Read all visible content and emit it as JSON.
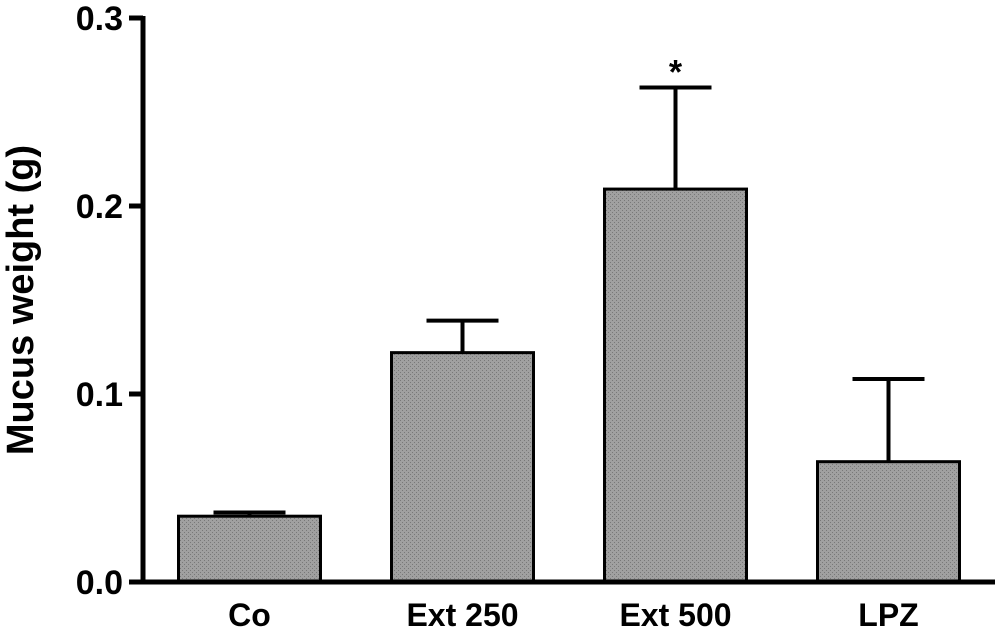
{
  "chart_data": {
    "type": "bar",
    "title": "",
    "xlabel": "",
    "ylabel": "Mucus weight (g)",
    "ylim": [
      0,
      0.3
    ],
    "yticks": [
      0.0,
      0.1,
      0.2,
      0.3
    ],
    "ytick_labels": [
      "0.0",
      "0.1",
      "0.2",
      "0.3"
    ],
    "categories": [
      "Co",
      "Ext 250",
      "Ext 500",
      "LPZ"
    ],
    "values": [
      0.035,
      0.122,
      0.209,
      0.064
    ],
    "errors": [
      0.002,
      0.017,
      0.054,
      0.044
    ],
    "annotations": [
      {
        "category": "Ext 500",
        "text": "*"
      }
    ],
    "grid": false,
    "legend": "none",
    "bar_color": "#a0a0a0",
    "pattern_color": "#787878",
    "axis_color": "#000000"
  }
}
